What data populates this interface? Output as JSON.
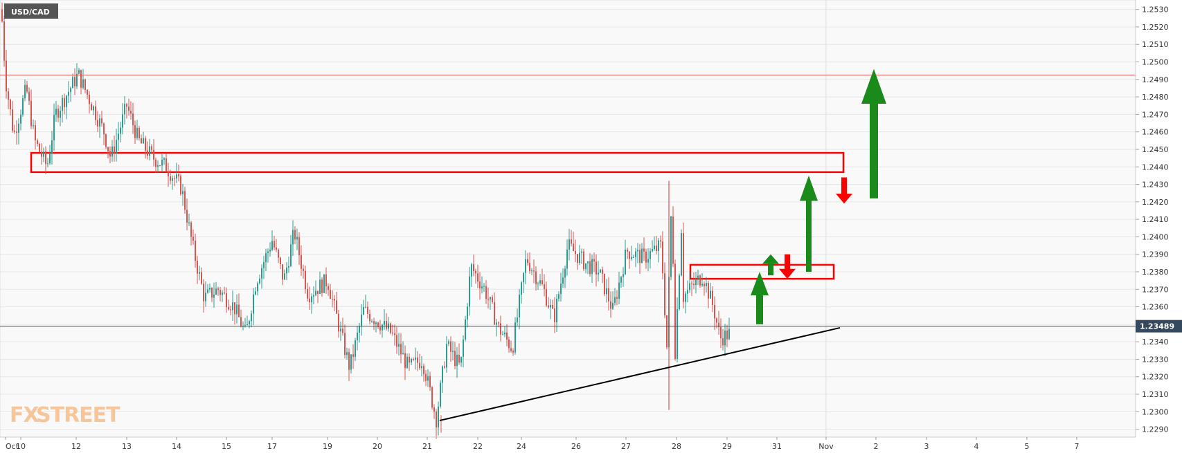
{
  "chart_data": {
    "type": "candlestick",
    "title": "USD/CAD",
    "ylim": [
      1.22855,
      1.25354
    ],
    "y_ticks": [
      "1.2290",
      "1.2300",
      "1.2310",
      "1.2320",
      "1.2330",
      "1.2340",
      "1.2350",
      "1.2360",
      "1.2370",
      "1.2380",
      "1.2390",
      "1.2400",
      "1.2410",
      "1.2420",
      "1.2430",
      "1.2440",
      "1.2450",
      "1.2460",
      "1.2470",
      "1.2480",
      "1.2490",
      "1.2500",
      "1.2510",
      "1.2520",
      "1.2530"
    ],
    "x_ticks": [
      "Oct",
      "10",
      "12",
      "13",
      "14",
      "15",
      "17",
      "19",
      "20",
      "21",
      "22",
      "24",
      "26",
      "27",
      "28",
      "29",
      "31",
      "Nov",
      "2",
      "3",
      "4",
      "5",
      "7"
    ],
    "last_price": "1.23489",
    "resistance_line": 1.24925,
    "current_line": 1.23489,
    "trendline": {
      "from": [
        "21",
        1.2295
      ],
      "to": [
        "Nov",
        1.2348
      ]
    },
    "zones": [
      {
        "from": "Oct",
        "to": "Nov",
        "low": 1.2437,
        "high": 1.2448
      },
      {
        "from": "28",
        "to": "31",
        "low": 1.2376,
        "high": 1.2384
      }
    ],
    "arrows": [
      {
        "direction": "up",
        "color": "green",
        "from": 1.235,
        "to": 1.238
      },
      {
        "direction": "up",
        "color": "green",
        "from": 1.2378,
        "to": 1.239
      },
      {
        "direction": "down",
        "color": "red",
        "from": 1.239,
        "to": 1.2376
      },
      {
        "direction": "up",
        "color": "green",
        "from": 1.238,
        "to": 1.2435
      },
      {
        "direction": "down",
        "color": "red",
        "from": 1.2434,
        "to": 1.2419
      },
      {
        "direction": "up",
        "color": "green",
        "from": 1.2422,
        "to": 1.2496
      }
    ],
    "colors": {
      "up": "#2a9d8f",
      "down": "#d9534f",
      "zone": "#ff0000",
      "arrow_up": "#1a8a1a",
      "arrow_down": "#ff0000",
      "trendline": "#000000",
      "price_label": "#34495e"
    }
  },
  "branding": {
    "logo_fx": "FX",
    "logo_street": "STREET"
  }
}
